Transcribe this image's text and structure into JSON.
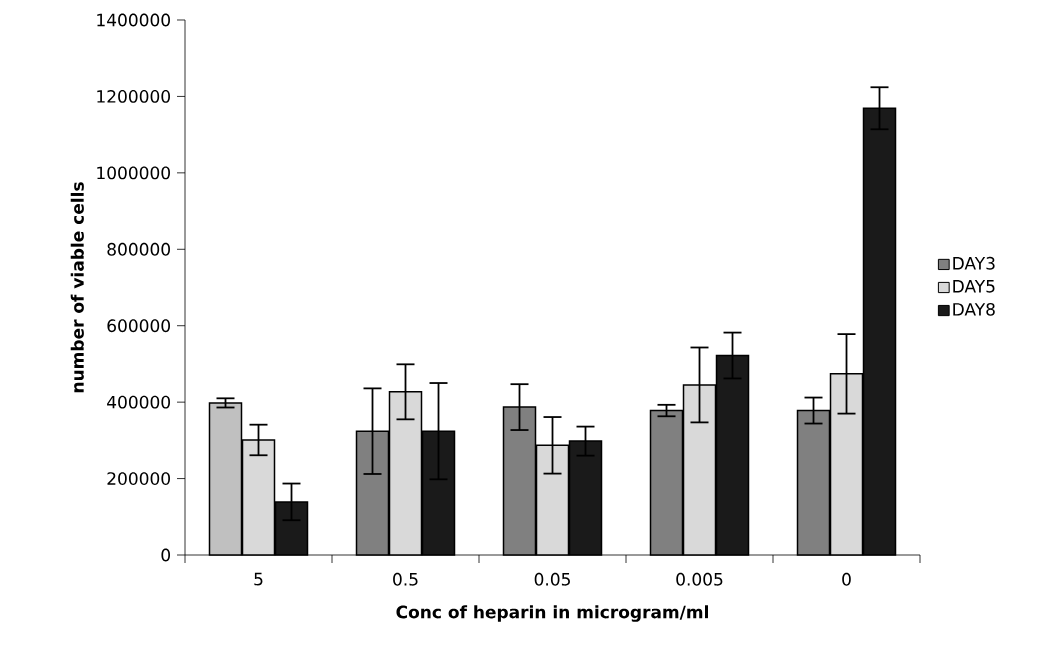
{
  "chart_data": {
    "type": "bar",
    "xlabel": "Conc of heparin in microgram/ml",
    "ylabel": "number of viable cells",
    "categories": [
      "5",
      "0.5",
      "0.05",
      "0.005",
      "0"
    ],
    "series": [
      {
        "name": "DAY3",
        "color": "#808080",
        "colors": [
          "#c0c0c0",
          "#808080",
          "#808080",
          "#808080",
          "#808080"
        ],
        "values": [
          398000,
          324000,
          387000,
          378000,
          378000
        ],
        "errors": [
          12000,
          112000,
          60000,
          15000,
          34000
        ]
      },
      {
        "name": "DAY5",
        "color": "#d9d9d9",
        "values": [
          301000,
          427000,
          287000,
          445000,
          474000
        ],
        "errors": [
          40000,
          72000,
          74000,
          98000,
          104000
        ]
      },
      {
        "name": "DAY8",
        "color": "#1a1a1a",
        "values": [
          139000,
          324000,
          298000,
          522000,
          1169000
        ],
        "errors": [
          48000,
          126000,
          38000,
          60000,
          55000
        ]
      }
    ],
    "ylim": [
      0,
      1400000
    ],
    "yticks": [
      0,
      200000,
      400000,
      600000,
      800000,
      1000000,
      1200000,
      1400000
    ],
    "legend": "right",
    "grid": false
  }
}
